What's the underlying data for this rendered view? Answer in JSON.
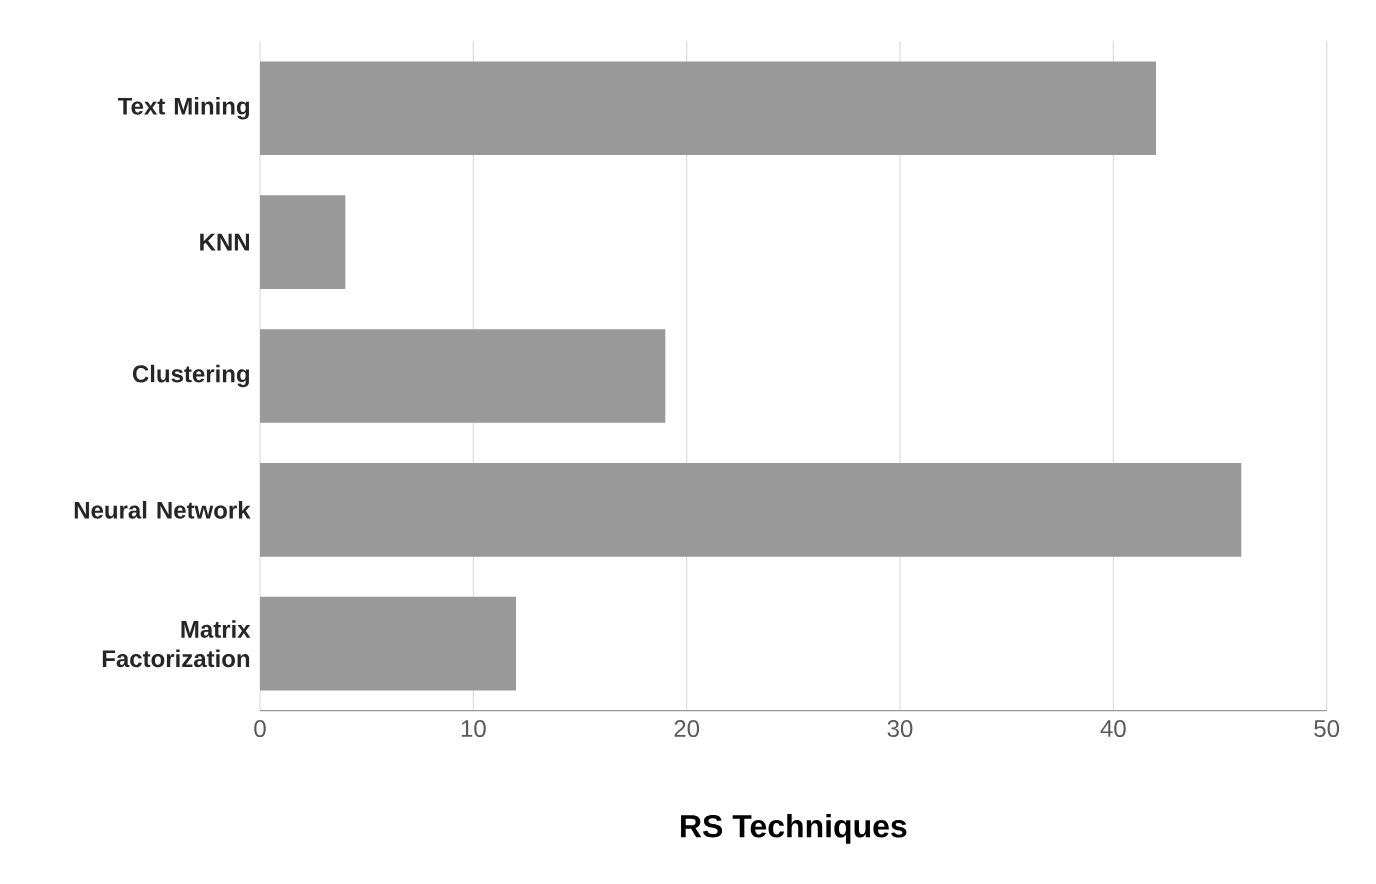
{
  "chart_data": {
    "type": "bar",
    "orientation": "horizontal",
    "xlabel": "RS Techniques",
    "categories": [
      "Text Mining",
      "KNN",
      "Clustering",
      "Neural Network",
      "Matrix Factorization"
    ],
    "values": [
      42,
      4,
      19,
      46,
      12
    ],
    "color": "#999999",
    "xlim": [
      0,
      50
    ],
    "xticks": [
      0,
      10,
      20,
      30,
      40,
      50
    ],
    "grid": "x"
  }
}
